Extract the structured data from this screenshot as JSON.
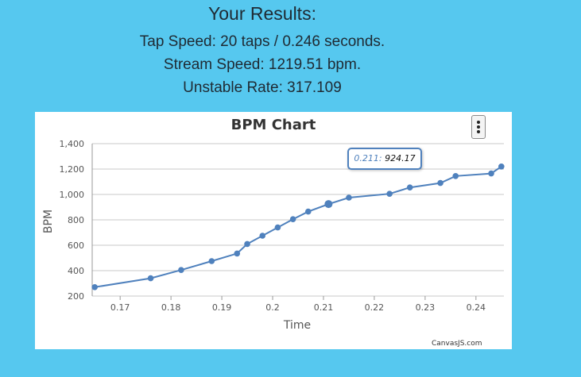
{
  "results": {
    "heading": "Your Results:",
    "tap_speed": "Tap Speed: 20 taps / 0.246 seconds.",
    "stream_speed": "Stream Speed: 1219.51 bpm.",
    "unstable_rate": "Unstable Rate: 317.109"
  },
  "tooltip": {
    "x_label": "0.211:",
    "y_value": "924.17"
  },
  "credit": "CanvasJS.com",
  "menu_icon": "hamburger-vertical-icon",
  "colors": {
    "background": "#56c8ef",
    "series": "#4f81bd",
    "grid": "#c8c8c8"
  },
  "chart_data": {
    "type": "line",
    "title": "BPM Chart",
    "xlabel": "Time",
    "ylabel": "BPM",
    "xlim": [
      0.1645,
      0.2455
    ],
    "ylim": [
      200,
      1400
    ],
    "xticks": [
      "0.17",
      "0.18",
      "0.19",
      "0.2",
      "0.21",
      "0.22",
      "0.23",
      "0.24"
    ],
    "yticks": [
      "200",
      "400",
      "600",
      "800",
      "1,000",
      "1,200",
      "1,400"
    ],
    "grid": true,
    "highlight_index": 10,
    "x": [
      0.165,
      0.176,
      0.182,
      0.188,
      0.193,
      0.195,
      0.198,
      0.201,
      0.204,
      0.207,
      0.211,
      0.215,
      0.223,
      0.227,
      0.233,
      0.236,
      0.243,
      0.245
    ],
    "y": [
      270,
      340,
      405,
      475,
      535,
      610,
      675,
      740,
      805,
      865,
      924.17,
      975,
      1005,
      1055,
      1090,
      1145,
      1165,
      1220
    ]
  }
}
